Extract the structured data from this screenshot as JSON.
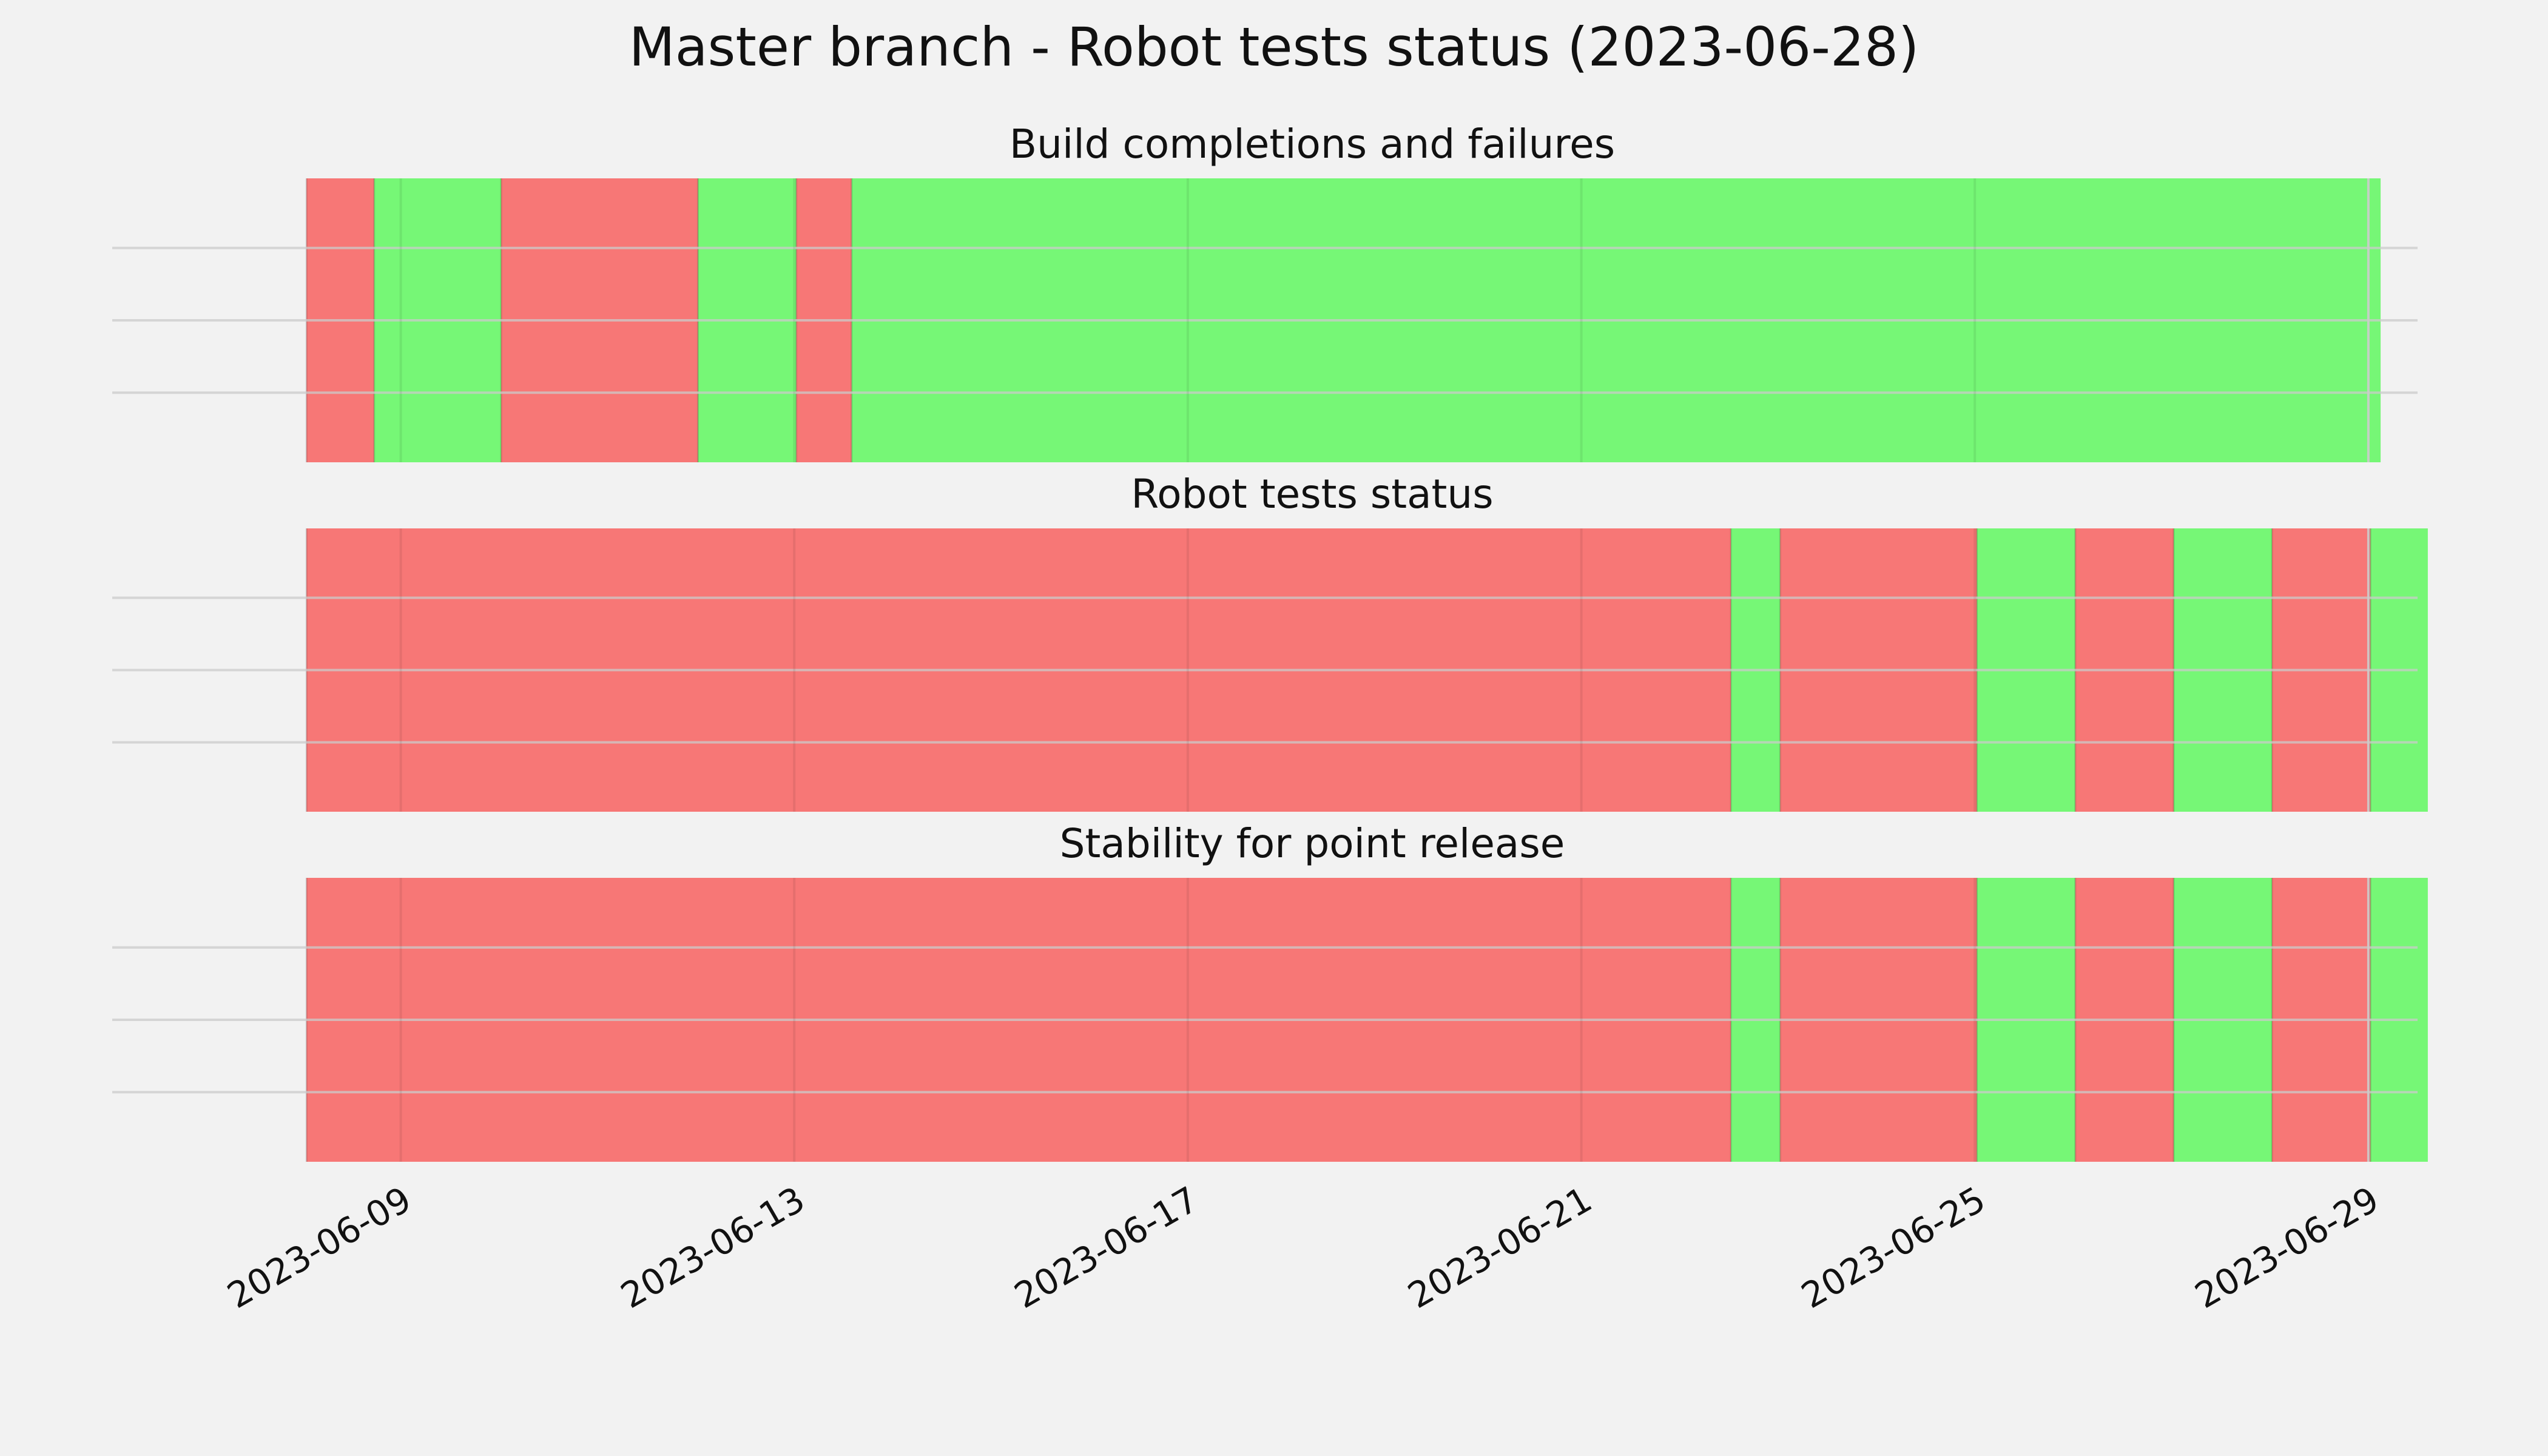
{
  "title": "Master branch - Robot tests status (2023-06-28)",
  "colors": {
    "background": "#f2f2f2",
    "pass": "#76f776",
    "fail": "#f77776",
    "grid": "#cbcbcb"
  },
  "chart_data": {
    "type": "timeline",
    "x_axis": {
      "type": "date",
      "range": [
        "2023-06-07T01:00",
        "2023-06-29T12:00"
      ],
      "tick_labels": [
        "2023-06-09",
        "2023-06-13",
        "2023-06-17",
        "2023-06-21",
        "2023-06-25",
        "2023-06-29"
      ]
    },
    "grid": true,
    "panels": [
      {
        "title": "Build completions and failures",
        "segments": [
          {
            "start": "2023-06-08T01:00",
            "end": "2023-06-08T17:30",
            "status": "fail"
          },
          {
            "start": "2023-06-08T17:30",
            "end": "2023-06-10T00:30",
            "status": "pass"
          },
          {
            "start": "2023-06-10T00:30",
            "end": "2023-06-12T00:30",
            "status": "fail"
          },
          {
            "start": "2023-06-12T00:30",
            "end": "2023-06-13T00:30",
            "status": "pass"
          },
          {
            "start": "2023-06-13T00:30",
            "end": "2023-06-13T14:00",
            "status": "fail"
          },
          {
            "start": "2023-06-13T14:00",
            "end": "2023-06-29T03:00",
            "status": "pass"
          }
        ]
      },
      {
        "title": "Robot tests status",
        "segments": [
          {
            "start": "2023-06-08T01:00",
            "end": "2023-06-22T12:30",
            "status": "fail"
          },
          {
            "start": "2023-06-22T12:30",
            "end": "2023-06-23T00:30",
            "status": "pass"
          },
          {
            "start": "2023-06-23T00:30",
            "end": "2023-06-25T00:30",
            "status": "fail"
          },
          {
            "start": "2023-06-25T00:30",
            "end": "2023-06-26T00:30",
            "status": "pass"
          },
          {
            "start": "2023-06-26T00:30",
            "end": "2023-06-27T00:30",
            "status": "fail"
          },
          {
            "start": "2023-06-27T00:30",
            "end": "2023-06-28T00:30",
            "status": "pass"
          },
          {
            "start": "2023-06-28T00:30",
            "end": "2023-06-29T00:30",
            "status": "fail"
          },
          {
            "start": "2023-06-29T00:30",
            "end": "2023-06-29T14:30",
            "status": "pass"
          }
        ]
      },
      {
        "title": "Stability for point release",
        "segments": [
          {
            "start": "2023-06-08T01:00",
            "end": "2023-06-22T12:30",
            "status": "fail"
          },
          {
            "start": "2023-06-22T12:30",
            "end": "2023-06-23T00:30",
            "status": "pass"
          },
          {
            "start": "2023-06-23T00:30",
            "end": "2023-06-25T00:30",
            "status": "fail"
          },
          {
            "start": "2023-06-25T00:30",
            "end": "2023-06-26T00:30",
            "status": "pass"
          },
          {
            "start": "2023-06-26T00:30",
            "end": "2023-06-27T00:30",
            "status": "fail"
          },
          {
            "start": "2023-06-27T00:30",
            "end": "2023-06-28T00:30",
            "status": "pass"
          },
          {
            "start": "2023-06-28T00:30",
            "end": "2023-06-29T00:30",
            "status": "fail"
          },
          {
            "start": "2023-06-29T00:30",
            "end": "2023-06-29T14:30",
            "status": "pass"
          }
        ]
      }
    ]
  }
}
